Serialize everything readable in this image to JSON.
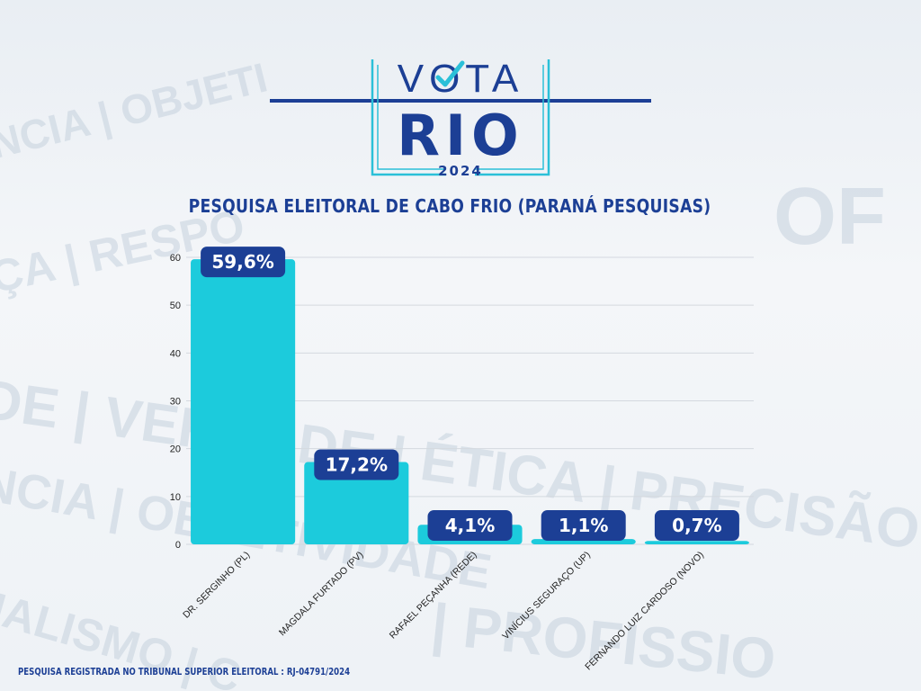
{
  "logo": {
    "line1": "VOTA",
    "line2": "RIO",
    "year": "2024",
    "colors": {
      "navy": "#1c3f95",
      "accent": "#2bc0d8"
    }
  },
  "background_words": [
    "DE | VERDADE | ÉTICA | PRECISÃO",
    "NCIA | OBJETIVIDADE",
    "NALISMO | C",
    "| PROFISSIO",
    "ÇA | RESPO",
    "NCIA | OBJETI",
    "OF"
  ],
  "chart_data": {
    "type": "bar",
    "title": "PESQUISA ELEITORAL DE CABO FRIO (PARANÁ PESQUISAS)",
    "categories": [
      "DR. SERGINHO (PL)",
      "MAGDALA FURTADO (PV)",
      "RAFAEL PEÇANHA (REDE)",
      "VINÍCIUS SEGURAÇO (UP)",
      "FERNANDO LUIZ CARDOSO (NOVO)"
    ],
    "values": [
      59.6,
      17.2,
      4.1,
      1.1,
      0.7
    ],
    "value_labels": [
      "59,6%",
      "17,2%",
      "4,1%",
      "1,1%",
      "0,7%"
    ],
    "y_ticks": [
      "0",
      "10",
      "20",
      "30",
      "40",
      "50",
      "60"
    ],
    "ylim": [
      0,
      60
    ],
    "xlabel": "",
    "ylabel": "",
    "grid": true,
    "colors": {
      "bar": "#1ccbdc",
      "label_bg": "#1c3f95",
      "label_text": "#ffffff",
      "grid": "#d4d9df",
      "tick": "#222222"
    }
  },
  "footer": {
    "note": "PESQUISA REGISTRADA NO TRIBUNAL SUPERIOR ELEITORAL : RJ-04791/2024"
  }
}
